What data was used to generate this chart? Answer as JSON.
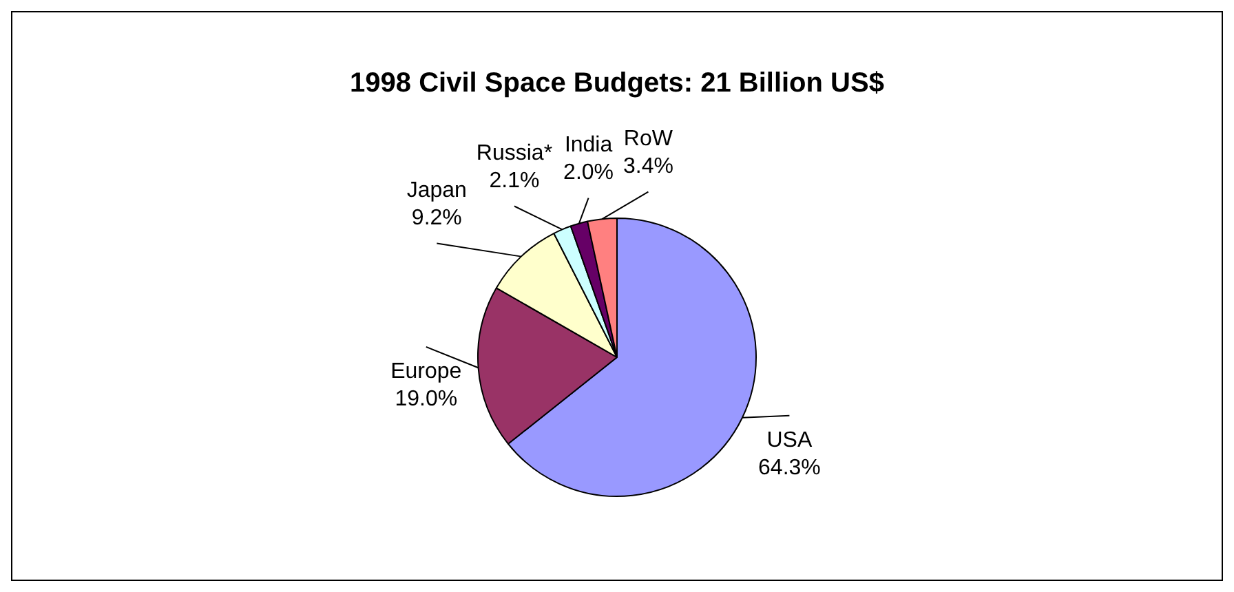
{
  "chart_data": {
    "type": "pie",
    "title": "1998 Civil Space Budgets: 21 Billion US$",
    "categories": [
      "USA",
      "Europe",
      "Japan",
      "Russia*",
      "India",
      "RoW"
    ],
    "values": [
      64.3,
      19.0,
      9.2,
      2.1,
      2.0,
      3.4
    ],
    "value_labels": [
      "64.3%",
      "19.0%",
      "9.2%",
      "2.1%",
      "2.0%",
      "3.4%"
    ],
    "colors": [
      "#9999ff",
      "#993366",
      "#ffffcc",
      "#ccffff",
      "#660066",
      "#ff8080"
    ],
    "legend": false
  }
}
